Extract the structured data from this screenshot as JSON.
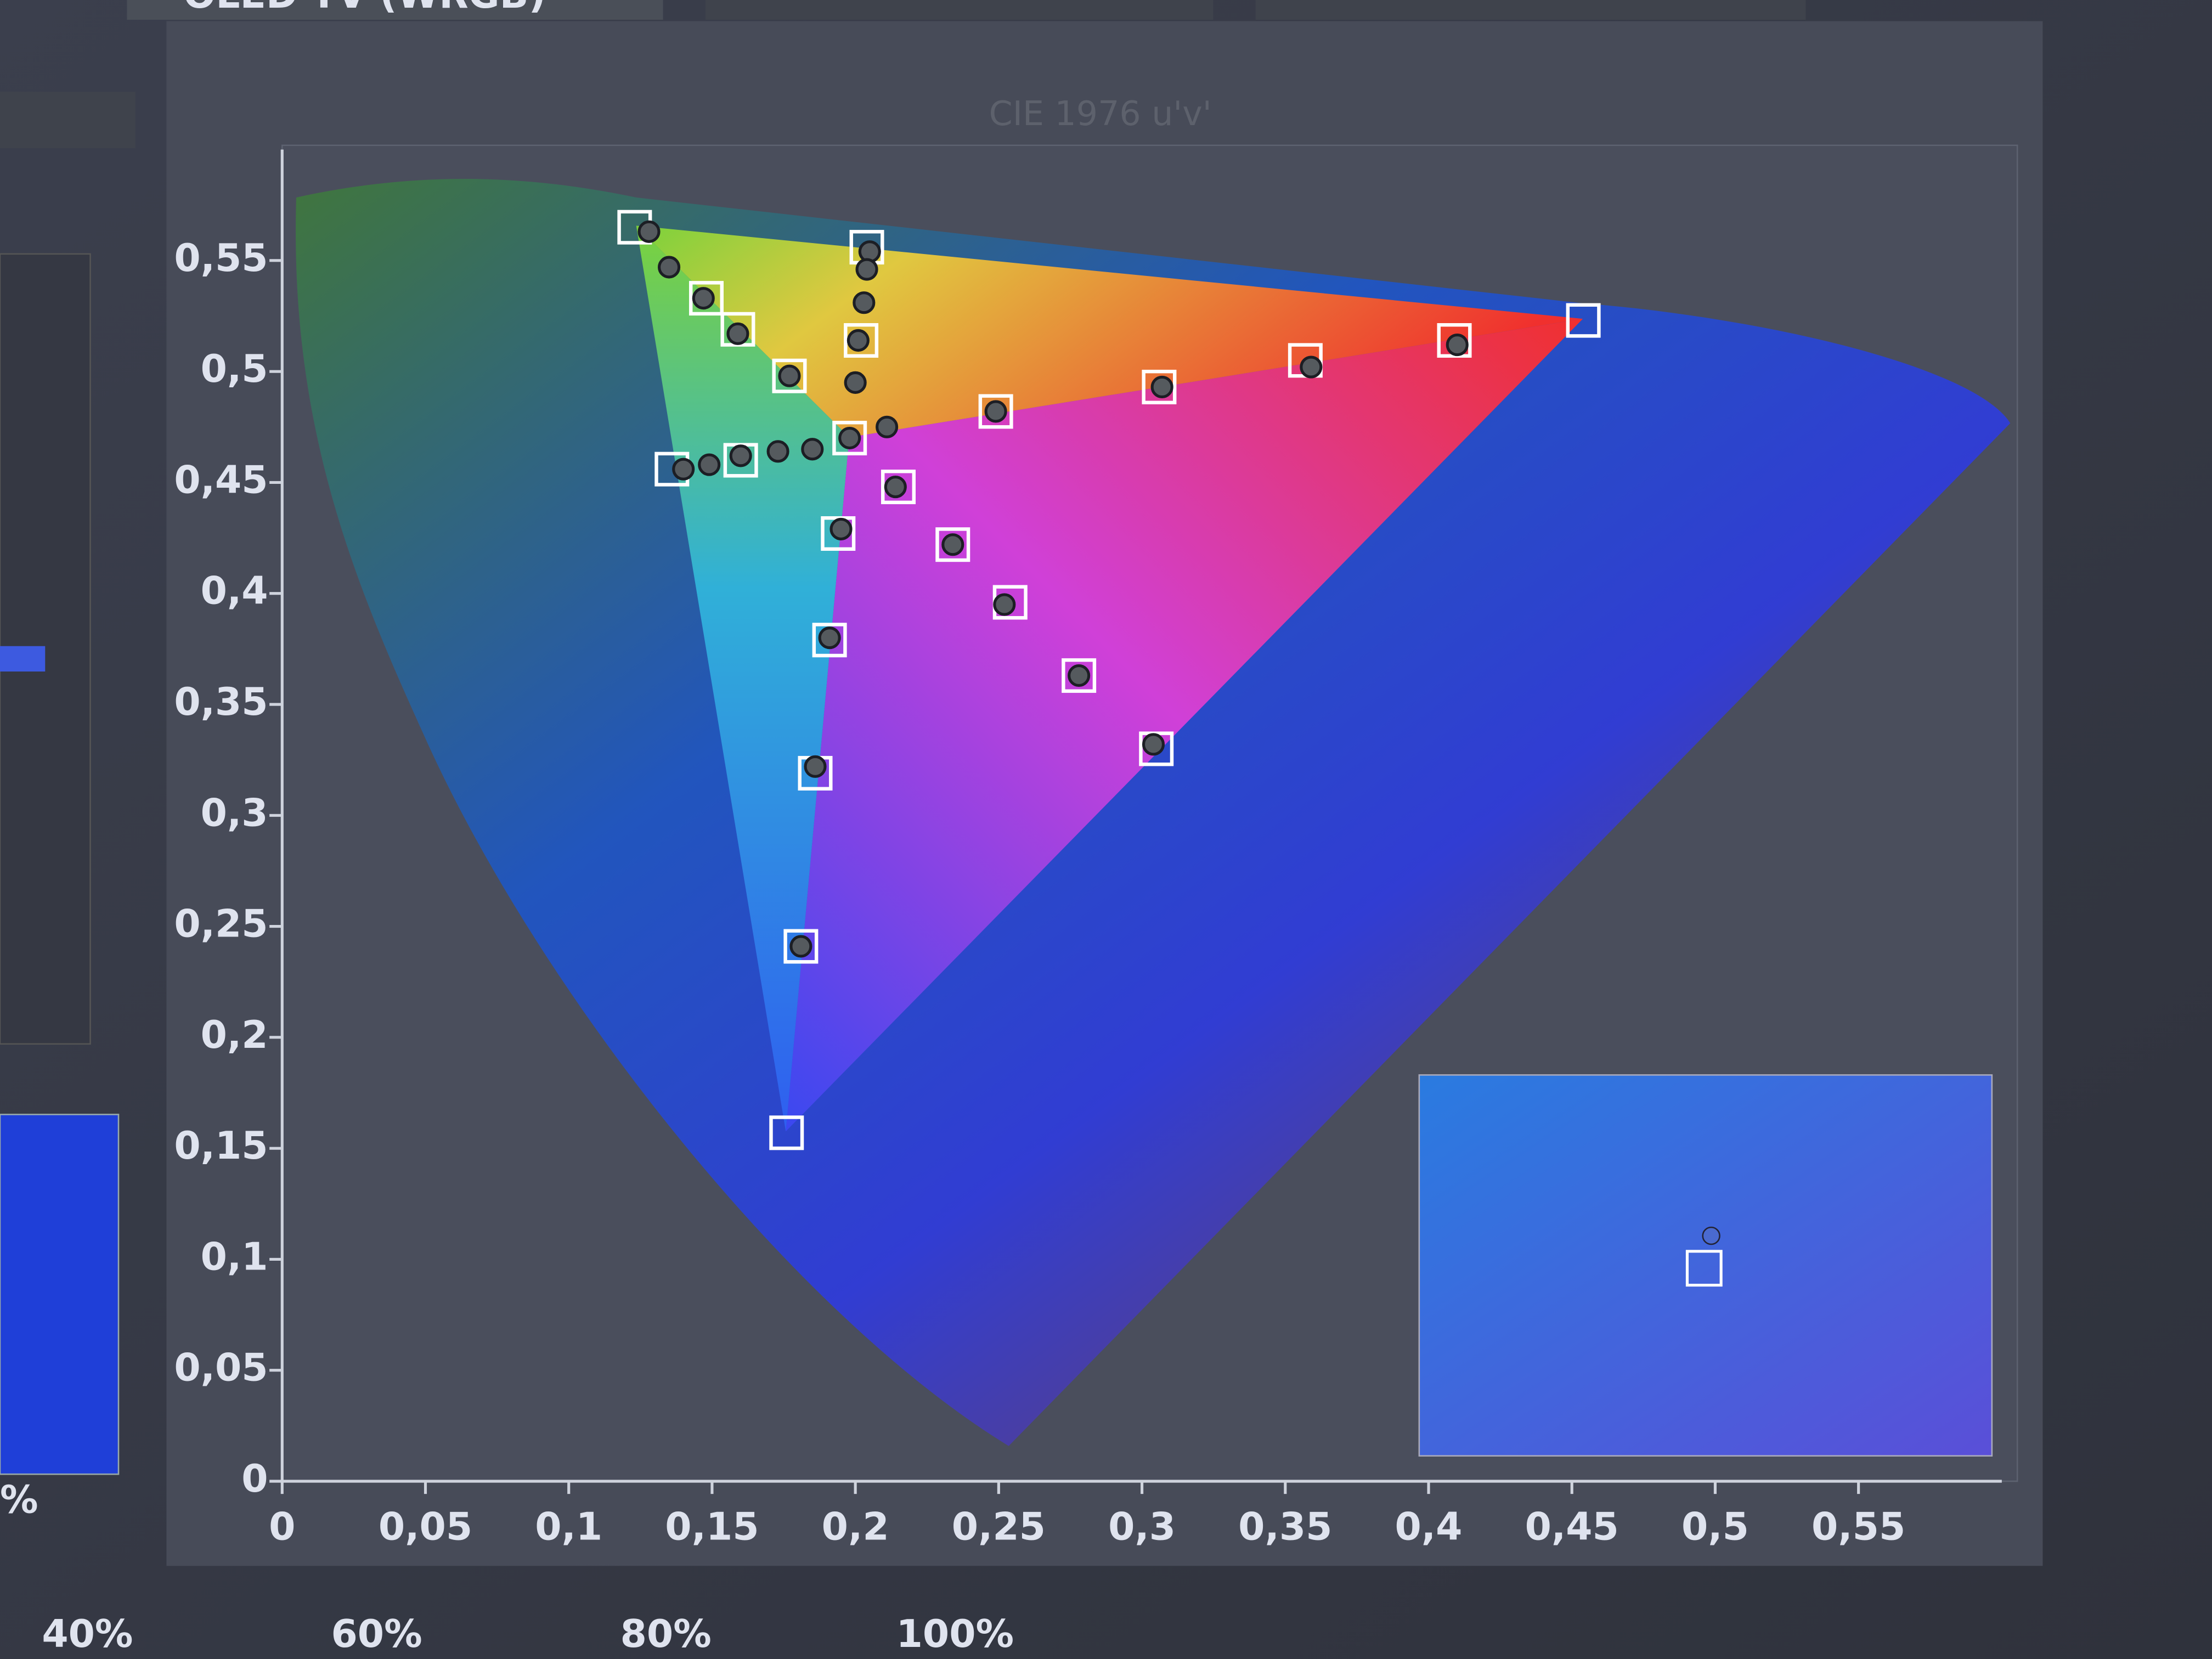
{
  "panel": {
    "top_label": "OLED TV (WRGB)",
    "bottom_labels": [
      "40%",
      "60%",
      "80%",
      "100%"
    ]
  },
  "chart_data": {
    "type": "scatter",
    "title": "CIE 1976 u'v'",
    "xlim": [
      0,
      0.6
    ],
    "ylim": [
      0,
      0.6
    ],
    "xticks": [
      0,
      {
        "value": 0.05,
        "label": "0,05"
      },
      {
        "value": 0.1,
        "label": "0,1"
      },
      {
        "value": 0.15,
        "label": "0,15"
      },
      {
        "value": 0.2,
        "label": "0,2"
      },
      {
        "value": 0.25,
        "label": "0,25"
      },
      {
        "value": 0.3,
        "label": "0,3"
      },
      {
        "value": 0.35,
        "label": "0,35"
      },
      {
        "value": 0.4,
        "label": "0,4"
      },
      {
        "value": 0.45,
        "label": "0,45"
      },
      {
        "value": 0.5,
        "label": "0,5"
      },
      {
        "value": 0.55,
        "label": "0,55"
      }
    ],
    "yticks": [
      0,
      {
        "value": 0.05,
        "label": "0,05"
      },
      {
        "value": 0.1,
        "label": "0,1"
      },
      {
        "value": 0.15,
        "label": "0,15"
      },
      {
        "value": 0.2,
        "label": "0,2"
      },
      {
        "value": 0.25,
        "label": "0,25"
      },
      {
        "value": 0.3,
        "label": "0,3"
      },
      {
        "value": 0.35,
        "label": "0,35"
      },
      {
        "value": 0.4,
        "label": "0,4"
      },
      {
        "value": 0.45,
        "label": "0,45"
      },
      {
        "value": 0.5,
        "label": "0,5"
      },
      {
        "value": 0.55,
        "label": "0,55"
      }
    ],
    "series": [
      {
        "marker": "square",
        "color": "#ffffff",
        "x": [
          0.123,
          0.148,
          0.159,
          0.177,
          0.198,
          0.204,
          0.202,
          0.454,
          0.409,
          0.357,
          0.306,
          0.249,
          0.136,
          0.16,
          0.305,
          0.278,
          0.254,
          0.234,
          0.215,
          0.176,
          0.181,
          0.186,
          0.191,
          0.194
        ],
        "values": [
          0.565,
          0.533,
          0.519,
          0.498,
          0.47,
          0.556,
          0.514,
          0.523,
          0.514,
          0.505,
          0.493,
          0.482,
          0.456,
          0.46,
          0.33,
          0.363,
          0.396,
          0.422,
          0.448,
          0.157,
          0.241,
          0.319,
          0.379,
          0.427
        ]
      },
      {
        "marker": "circle",
        "color": "#555a5e",
        "x": [
          0.128,
          0.135,
          0.147,
          0.159,
          0.177,
          0.205,
          0.204,
          0.203,
          0.201,
          0.2,
          0.41,
          0.359,
          0.307,
          0.249,
          0.211,
          0.14,
          0.149,
          0.16,
          0.173,
          0.185,
          0.198,
          0.304,
          0.278,
          0.252,
          0.234,
          0.214,
          0.181,
          0.186,
          0.191,
          0.195
        ],
        "values": [
          0.563,
          0.547,
          0.533,
          0.517,
          0.498,
          0.554,
          0.546,
          0.531,
          0.514,
          0.495,
          0.512,
          0.502,
          0.493,
          0.482,
          0.475,
          0.456,
          0.458,
          0.462,
          0.464,
          0.465,
          0.47,
          0.332,
          0.363,
          0.395,
          0.422,
          0.448,
          0.241,
          0.322,
          0.38,
          0.429
        ]
      }
    ]
  }
}
